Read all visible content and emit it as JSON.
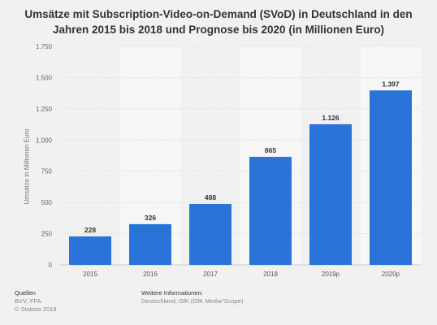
{
  "chart_data": {
    "type": "bar",
    "title": "Umsätze mit Subscription-Video-on-Demand (SVoD) in Deutschland in den Jahren 2015 bis 2018 und Prognose bis 2020 (in Millionen Euro)",
    "ylabel": "Umsätze in Millionen Euro",
    "xlabel": "",
    "categories": [
      "2015",
      "2016",
      "2017",
      "2018",
      "2019p",
      "2020p"
    ],
    "values": [
      228,
      326,
      488,
      865,
      1126,
      1397
    ],
    "value_labels": [
      "228",
      "326",
      "488",
      "865",
      "1.126",
      "1.397"
    ],
    "ylim": [
      0,
      1750
    ],
    "yticks": [
      0,
      250,
      500,
      750,
      1000,
      1250,
      1500,
      1750
    ],
    "ytick_labels": [
      "0",
      "250",
      "500",
      "750",
      "1.000",
      "1.250",
      "1.500",
      "1.750"
    ],
    "grid": true,
    "bar_color": "#2a73d9"
  },
  "footer": {
    "sources_heading": "Quellen",
    "sources_line1": "BVV; FFA",
    "sources_line2": "© Statista 2019",
    "info_heading": "Weitere Informationen:",
    "info_line1": "Deutschland; GfK (GfK Media*Scope)"
  }
}
